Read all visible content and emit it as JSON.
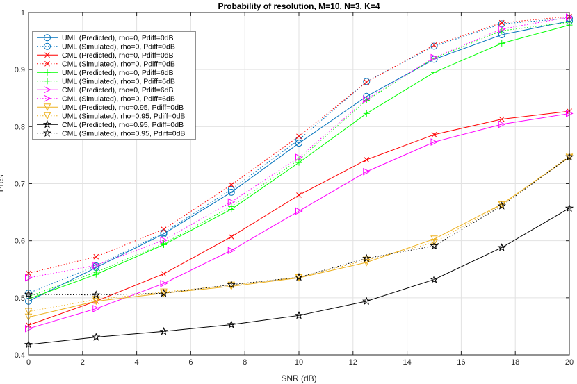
{
  "chart_data": {
    "type": "line",
    "title": "Probability of resolution, M=10, N=3, K=4",
    "xlabel": "SNR (dB)",
    "ylabel": "Pres",
    "xlim": [
      0,
      20
    ],
    "ylim": [
      0.4,
      1
    ],
    "xticks": [
      0,
      2,
      4,
      6,
      8,
      10,
      12,
      14,
      16,
      18,
      20
    ],
    "yticks": [
      0.4,
      0.5,
      0.6,
      0.7,
      0.8,
      0.9,
      1
    ],
    "xtick_labels": [
      "0",
      "2",
      "4",
      "6",
      "8",
      "10",
      "12",
      "14",
      "16",
      "18",
      "20"
    ],
    "ytick_labels": [
      "0.4",
      "0.5",
      "0.6",
      "0.7",
      "0.8",
      "0.9",
      "1"
    ],
    "grid": true,
    "legend_position": "top-left",
    "x": [
      0,
      2.5,
      5,
      7.5,
      10,
      12.5,
      15,
      17.5,
      20
    ],
    "series": [
      {
        "name": "UML (Predicted), rho=0, Pdiff=0dB",
        "color": "#0072BD",
        "line": "solid",
        "marker": "circle",
        "values": [
          0.494,
          0.553,
          0.612,
          0.685,
          0.771,
          0.853,
          0.918,
          0.961,
          0.985
        ]
      },
      {
        "name": "UML (Simulated), rho=0, Pdiff=0dB",
        "color": "#0072BD",
        "line": "dotted",
        "marker": "circle",
        "values": [
          0.508,
          0.556,
          0.614,
          0.69,
          0.777,
          0.879,
          0.941,
          0.98,
          0.99
        ]
      },
      {
        "name": "CML (Predicted), rho=0, Pdiff=0dB",
        "color": "#ff0000",
        "line": "solid",
        "marker": "x",
        "values": [
          0.452,
          0.494,
          0.542,
          0.607,
          0.68,
          0.742,
          0.786,
          0.813,
          0.827
        ]
      },
      {
        "name": "CML (Simulated), rho=0, Pdiff=0dB",
        "color": "#ff0000",
        "line": "dotted",
        "marker": "x",
        "values": [
          0.543,
          0.572,
          0.62,
          0.698,
          0.783,
          0.878,
          0.943,
          0.982,
          0.993
        ]
      },
      {
        "name": "UML (Predicted), rho=0, Pdiff=6dB",
        "color": "#00ff00",
        "line": "solid",
        "marker": "plus",
        "values": [
          0.498,
          0.541,
          0.593,
          0.655,
          0.737,
          0.823,
          0.895,
          0.946,
          0.978
        ]
      },
      {
        "name": "UML (Simulated), rho=0, Pdiff=6dB",
        "color": "#00ff00",
        "line": "dotted",
        "marker": "plus",
        "values": [
          0.502,
          0.545,
          0.595,
          0.66,
          0.742,
          0.846,
          0.92,
          0.968,
          0.983
        ]
      },
      {
        "name": "CML (Predicted), rho=0, Pdiff=6dB",
        "color": "#ff00ff",
        "line": "solid",
        "marker": "triangle-right",
        "values": [
          0.446,
          0.481,
          0.525,
          0.583,
          0.652,
          0.721,
          0.773,
          0.804,
          0.823
        ]
      },
      {
        "name": "CML (Simulated), rho=0, Pdiff=6dB",
        "color": "#ff00ff",
        "line": "dotted",
        "marker": "triangle-right",
        "values": [
          0.535,
          0.557,
          0.601,
          0.668,
          0.746,
          0.848,
          0.921,
          0.971,
          0.992
        ]
      },
      {
        "name": "UML (Predicted), rho=0.95, Pdiff=0dB",
        "color": "#EDB120",
        "line": "solid",
        "marker": "triangle-down",
        "values": [
          0.466,
          0.494,
          0.508,
          0.52,
          0.535,
          0.562,
          0.603,
          0.664,
          0.746
        ]
      },
      {
        "name": "UML (Simulated), rho=0.95, Pdiff=0dB",
        "color": "#EDB120",
        "line": "dotted",
        "marker": "triangle-down",
        "values": [
          0.476,
          0.497,
          0.51,
          0.522,
          0.536,
          0.566,
          0.597,
          0.663,
          0.748
        ]
      },
      {
        "name": "CML (Predicted), rho=0.95, Pdiff=0dB",
        "color": "#000000",
        "line": "solid",
        "marker": "star",
        "values": [
          0.418,
          0.431,
          0.441,
          0.453,
          0.469,
          0.494,
          0.532,
          0.588,
          0.657
        ]
      },
      {
        "name": "CML (Simulated), rho=0.95, Pdiff=0dB",
        "color": "#000000",
        "line": "dotted",
        "marker": "star",
        "values": [
          0.506,
          0.505,
          0.508,
          0.523,
          0.536,
          0.569,
          0.591,
          0.661,
          0.747
        ]
      }
    ]
  }
}
